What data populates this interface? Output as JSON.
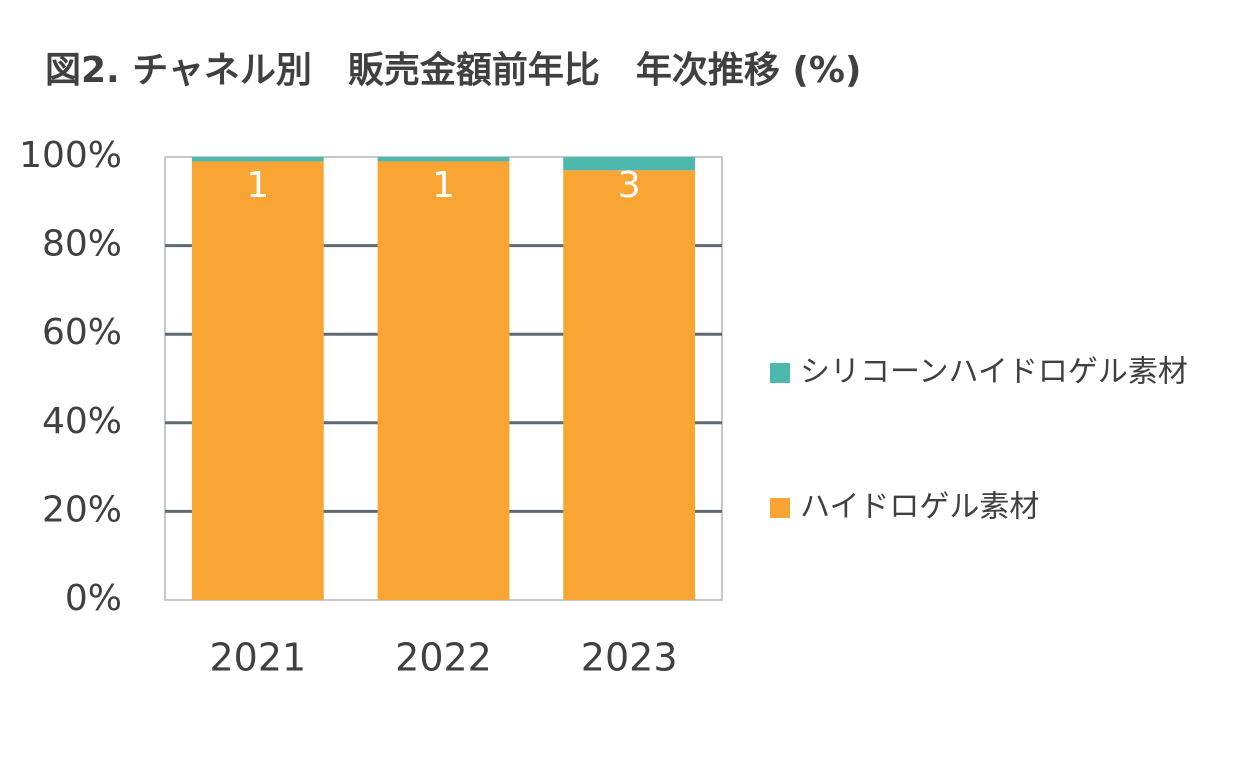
{
  "chart_data": {
    "type": "stacked_bar_percent",
    "title": "図2. チャネル別　販売金額前年比　年次推移 (%)",
    "categories": [
      "2021",
      "2022",
      "2023"
    ],
    "series": [
      {
        "name": "ハイドロゲル素材",
        "color": "#f9a533",
        "values": [
          99,
          99,
          97
        ]
      },
      {
        "name": "シリコーンハイドロゲル素材",
        "color": "#4db8ad",
        "values": [
          1,
          1,
          3
        ]
      }
    ],
    "ylim": [
      0,
      100
    ],
    "yticks": [
      {
        "value": 0,
        "label": "0%"
      },
      {
        "value": 20,
        "label": "20%"
      },
      {
        "value": 40,
        "label": "40%"
      },
      {
        "value": 60,
        "label": "60%"
      },
      {
        "value": 80,
        "label": "80%"
      },
      {
        "value": 100,
        "label": "100%"
      }
    ],
    "grid": true,
    "legend": "right"
  }
}
